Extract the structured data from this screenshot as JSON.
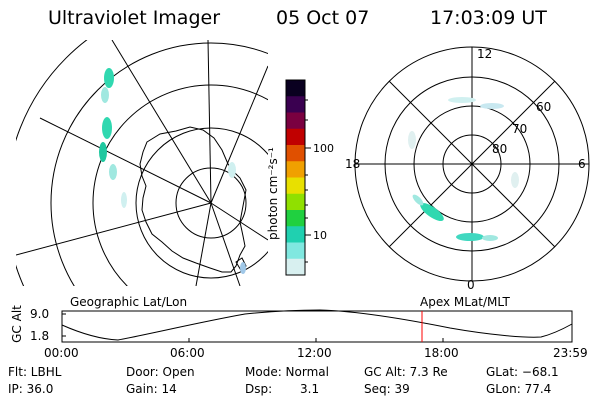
{
  "header": {
    "instrument": "Ultraviolet Imager",
    "date": "05 Oct 07",
    "time": "17:03:09 UT"
  },
  "colorbar": {
    "unit_label": "photon cm⁻²s⁻¹",
    "ticks": [
      "100",
      "10"
    ],
    "colors": [
      "#0a0020",
      "#3a0050",
      "#7a0040",
      "#c00000",
      "#e05000",
      "#f0a000",
      "#e8e000",
      "#90e000",
      "#20d040",
      "#20d0b0",
      "#80e8e0",
      "#d8f0f0"
    ]
  },
  "polar_plot": {
    "mlt_labels": [
      "12",
      "18",
      "6",
      "0"
    ],
    "lat_labels": [
      "60",
      "70",
      "80"
    ]
  },
  "timeline": {
    "left_caption": "Geographic Lat/Lon",
    "right_caption": "Apex MLat/MLT",
    "y_axis_label": "GC Alt",
    "y_ticks": [
      "9.0",
      "1.8"
    ],
    "x_ticks": [
      "00:00",
      "06:00",
      "12:00",
      "18:00",
      "23:59"
    ],
    "marker_color": "#ff0000"
  },
  "info": {
    "filter": "Flt: LBHL",
    "door": "Door: Open",
    "mode": "Mode: Normal",
    "gc_alt": "GC Alt: 7.3 Re",
    "glat": "GLat: −68.1",
    "ip": "IP: 36.0",
    "gain": "Gain: 14",
    "dsp": "Dsp:",
    "dsp_value": "3.1",
    "seq": "Seq: 39",
    "glon": "GLon: 77.4"
  }
}
